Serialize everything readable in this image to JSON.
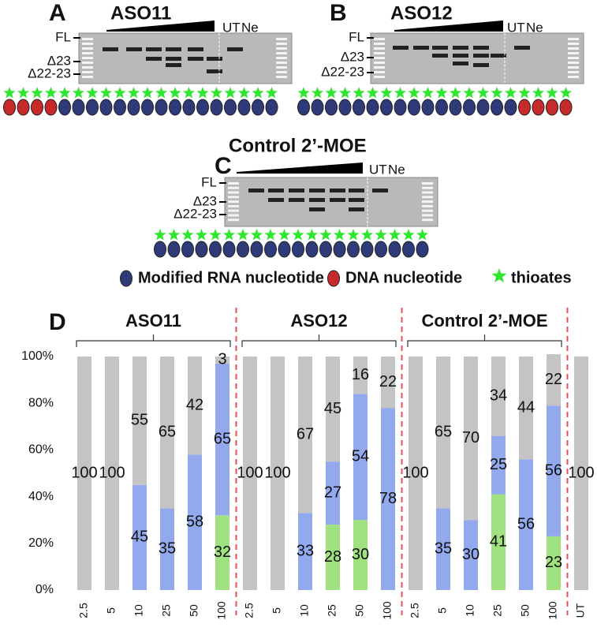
{
  "panels": [
    {
      "letter": "A",
      "title": "ASO11",
      "bands": [
        "FL",
        "Δ23",
        "Δ22-23"
      ],
      "lanes": [
        "UT",
        "Ne"
      ]
    },
    {
      "letter": "B",
      "title": "ASO12",
      "bands": [
        "FL",
        "Δ23",
        "Δ22-23"
      ],
      "lanes": [
        "UT",
        "Ne"
      ]
    },
    {
      "letter": "C",
      "title": "Control 2’-MOE",
      "bands": [
        "FL",
        "Δ23",
        "Δ22-23"
      ],
      "lanes": [
        "UT",
        "Ne"
      ]
    }
  ],
  "legend": [
    "Modified RNA nucleotide",
    "DNA nucleotide",
    "thioates"
  ],
  "chart_data": {
    "type": "stacked_bar",
    "panel": "D",
    "group_labels": [
      "ASO11",
      "ASO12",
      "Control 2’-MOE"
    ],
    "categories": [
      "2.5",
      "5",
      "10",
      "25",
      "50",
      "100",
      "2.5",
      "5",
      "10",
      "25",
      "50",
      "100",
      "2.5",
      "5",
      "10",
      "25",
      "50",
      "100",
      "UT"
    ],
    "series": [
      {
        "color": "#9fe27f",
        "values": [
          null,
          null,
          null,
          null,
          null,
          32,
          null,
          null,
          null,
          28,
          30,
          null,
          null,
          null,
          null,
          41,
          null,
          23,
          null
        ]
      },
      {
        "color": "#93a9ee",
        "values": [
          null,
          null,
          45,
          35,
          58,
          65,
          null,
          null,
          33,
          27,
          54,
          78,
          null,
          35,
          30,
          25,
          56,
          56,
          null
        ]
      },
      {
        "color": "#c4c4c4",
        "values": [
          100,
          100,
          55,
          65,
          42,
          3,
          100,
          100,
          67,
          45,
          16,
          22,
          100,
          65,
          70,
          34,
          44,
          22,
          100
        ]
      }
    ],
    "ylim": [
      0,
      100
    ],
    "yticks": [
      {
        "value": 0,
        "label": "0%"
      },
      {
        "value": 20,
        "label": "20%"
      },
      {
        "value": 40,
        "label": "40%"
      },
      {
        "value": 60,
        "label": "60%"
      },
      {
        "value": 80,
        "label": "80%"
      },
      {
        "value": 100,
        "label": "100%"
      }
    ]
  }
}
